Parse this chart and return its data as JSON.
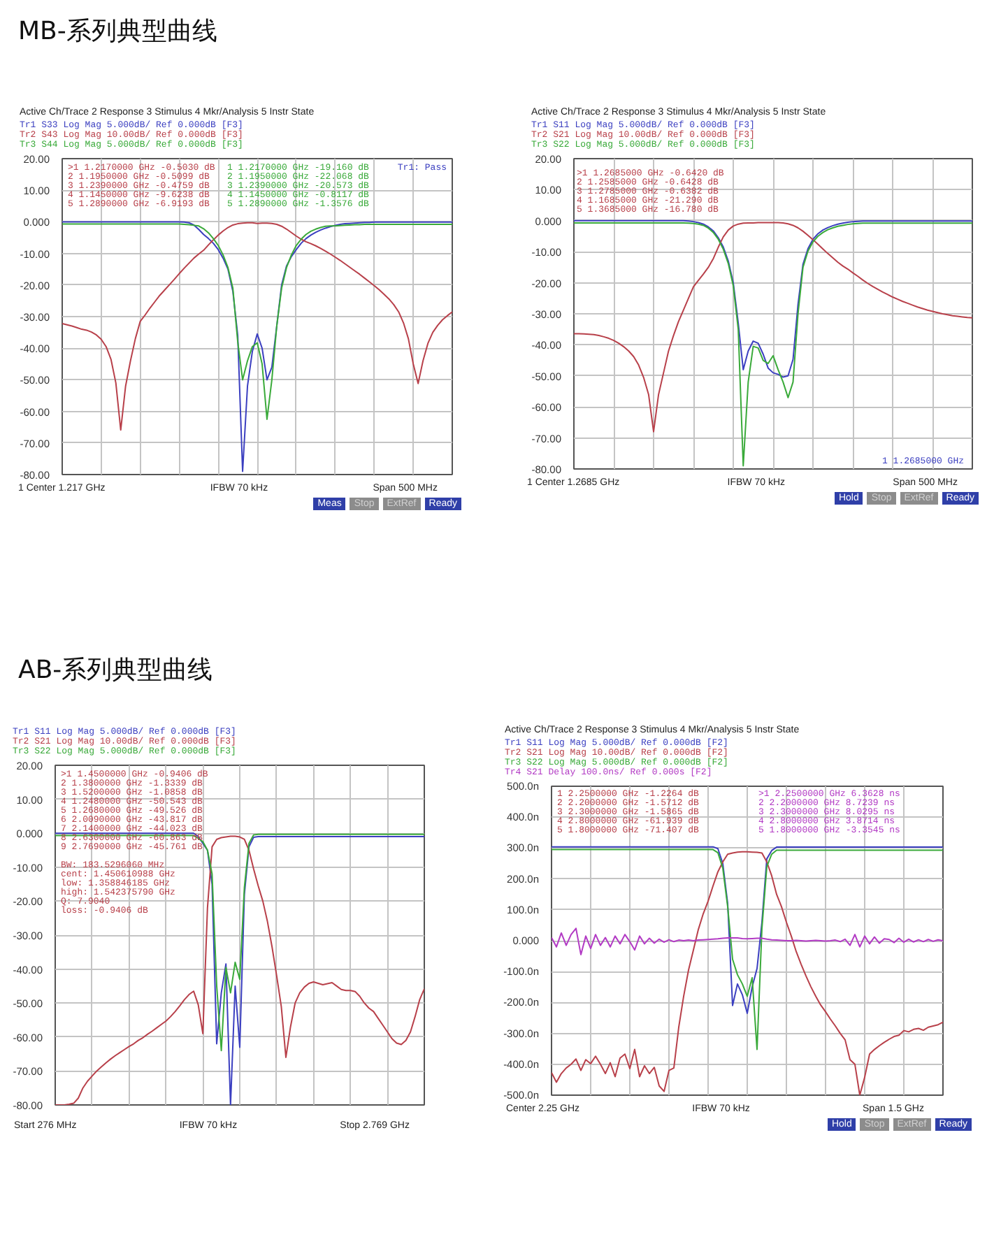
{
  "chart_data": [
    {
      "type": "line",
      "title": "MB-系列典型曲线",
      "subtitle": "Active Ch/Trace 2 Response 3 Stimulus 4 Mkr/Analysis 5 Instr State",
      "categories": [
        null,
        null,
        null,
        null,
        null,
        null,
        null,
        null,
        null,
        null,
        null,
        null,
        null,
        null,
        null,
        null,
        null,
        null,
        null,
        null,
        null,
        null,
        null,
        null,
        null,
        null,
        null,
        null,
        null,
        null,
        null,
        null,
        null,
        null,
        null,
        null,
        null,
        null,
        null,
        null,
        null,
        null,
        null,
        null,
        null,
        null,
        null,
        null,
        null,
        null,
        null,
        null,
        null,
        null,
        null,
        null,
        null,
        null,
        null,
        null,
        null,
        null,
        null,
        null,
        null,
        null,
        null,
        null,
        null,
        null,
        null,
        null,
        null,
        null,
        null,
        null,
        null,
        null,
        null,
        null,
        null
      ],
      "series": [
        {
          "name": "Tr1 S33 Log Mag 5.000dB/ Ref 0.000dB [F3]",
          "color": "#3b3fc0",
          "values": [
            0,
            0,
            0,
            0,
            0,
            0,
            0,
            0,
            0,
            0,
            0,
            0,
            0,
            0,
            0,
            0,
            0,
            0,
            0,
            0,
            0,
            0,
            0,
            0,
            0,
            -0.1,
            -0.3,
            -1.0,
            -2.4,
            -4.0,
            -5.3,
            -6.8,
            -8.8,
            -11.5,
            -15,
            -22,
            -36,
            -79,
            -52,
            -41,
            -35.5,
            -40,
            -50,
            -46,
            -33,
            -20,
            -14,
            -11,
            -8.8,
            -6.8,
            -5.3,
            -4.2,
            -3.3,
            -2.6,
            -2.0,
            -1.5,
            -1.1,
            -0.8,
            -0.6,
            -0.5,
            -0.4,
            -0.3,
            -0.2,
            -0.2,
            -0.1,
            -0.1,
            -0.1,
            -0.1,
            -0.1,
            -0.1,
            -0.1,
            -0.1,
            -0.1,
            -0.1,
            -0.1,
            -0.1,
            -0.1,
            -0.1,
            -0.1,
            -0.1,
            -0.1
          ]
        },
        {
          "name": "Tr2 S43 Log Mag 10.00dB/ Ref 0.000dB [F3]",
          "color": "#b8404a",
          "values": [
            -32.2,
            -32.6,
            -33.0,
            -33.5,
            -34.0,
            -34.3,
            -34.9,
            -35.8,
            -37.2,
            -39.5,
            -43.5,
            -51,
            -65.9,
            -52,
            -44,
            -37,
            -31.5,
            -29.5,
            -27.3,
            -25.3,
            -23.3,
            -21.6,
            -19.9,
            -18.2,
            -16.4,
            -14.7,
            -13.1,
            -11.5,
            -10.2,
            -9.0,
            -7.3,
            -5.7,
            -4.2,
            -2.9,
            -1.8,
            -1.0,
            -0.6,
            -0.4,
            -0.3,
            -0.3,
            -0.5,
            -0.4,
            -0.4,
            -0.5,
            -0.8,
            -1.4,
            -2.3,
            -3.4,
            -4.5,
            -5.5,
            -6.3,
            -6.9,
            -7.6,
            -8.4,
            -9.3,
            -10.2,
            -11.2,
            -12.2,
            -13.3,
            -14.4,
            -15.5,
            -16.6,
            -17.8,
            -19.0,
            -20.2,
            -21.5,
            -22.9,
            -24.4,
            -26.2,
            -28.5,
            -32,
            -37,
            -45,
            -51.2,
            -44,
            -38.5,
            -35,
            -32.8,
            -31.0,
            -29.7,
            -28.5
          ]
        },
        {
          "name": "Tr3 S44 Log Mag 5.000dB/ Ref 0.000dB [F3]",
          "color": "#3aaa3a",
          "values": [
            -0.7,
            -0.7,
            -0.7,
            -0.7,
            -0.7,
            -0.7,
            -0.7,
            -0.7,
            -0.7,
            -0.7,
            -0.7,
            -0.7,
            -0.7,
            -0.7,
            -0.7,
            -0.7,
            -0.7,
            -0.7,
            -0.7,
            -0.7,
            -0.7,
            -0.7,
            -0.7,
            -0.7,
            -0.7,
            -0.8,
            -0.9,
            -1.1,
            -1.3,
            -2.2,
            -3.5,
            -5.3,
            -7.5,
            -10.5,
            -14.5,
            -21,
            -38,
            -50,
            -44,
            -39.5,
            -38.3,
            -45,
            -62.5,
            -50,
            -33,
            -21,
            -14.5,
            -10.5,
            -7.5,
            -5.5,
            -4.0,
            -3.0,
            -2.3,
            -1.8,
            -1.4,
            -1.3,
            -1.3,
            -1.2,
            -1.1,
            -1.0,
            -0.9,
            -0.9,
            -0.8,
            -0.8,
            -0.8,
            -0.8,
            -0.8,
            -0.8,
            -0.8,
            -0.8,
            -0.8,
            -0.8,
            -0.8,
            -0.8,
            -0.8,
            -0.8,
            -0.8,
            -0.8,
            -0.8,
            -0.8,
            -0.8
          ]
        }
      ],
      "ylim": [
        -80,
        20
      ],
      "yticks": [
        {
          "value": 20,
          "label": "20.00"
        },
        {
          "value": 10,
          "label": "10.00"
        },
        {
          "value": 0,
          "label": "0.000"
        },
        {
          "value": -10,
          "label": "-10.00"
        },
        {
          "value": -20,
          "label": "-20.00"
        },
        {
          "value": -30,
          "label": "-30.00"
        },
        {
          "value": -40,
          "label": "-40.00"
        },
        {
          "value": -50,
          "label": "-50.00"
        },
        {
          "value": -60,
          "label": "-60.00"
        },
        {
          "value": -70,
          "label": "-70.00"
        },
        {
          "value": -80,
          "label": "-80.00"
        }
      ],
      "grid": true,
      "tick_labels": "y",
      "annotations": [
        ">1 1.2170000 GHz -0.5030 dB\n2 1.1950000 GHz -0.5099 dB\n3 1.2390000 GHz -0.4759 dB\n4 1.1450000 GHz -9.6238 dB\n5 1.2890000 GHz -6.9193 dB",
        "1 1.2170000 GHz -19.160 dB\n2 1.1950000 GHz -22.068 dB\n3 1.2390000 GHz -20.573 dB\n4 1.1450000 GHz -0.8117 dB\n5 1.2890000 GHz -1.3576 dB",
        "Tr1: Pass",
        "1 Center 1.217 GHz",
        "IFBW 70 kHz",
        "Span 500 MHz",
        "Meas",
        "Stop",
        "ExtRef",
        "Ready"
      ]
    },
    {
      "type": "line",
      "subtitle": "Active Ch/Trace 2 Response 3 Stimulus 4 Mkr/Analysis 5 Instr State",
      "categories": [
        null,
        null,
        null,
        null,
        null,
        null,
        null,
        null,
        null,
        null,
        null,
        null,
        null,
        null,
        null,
        null,
        null,
        null,
        null,
        null,
        null,
        null,
        null,
        null,
        null,
        null,
        null,
        null,
        null,
        null,
        null,
        null,
        null,
        null,
        null,
        null,
        null,
        null,
        null,
        null,
        null,
        null,
        null,
        null,
        null,
        null,
        null,
        null,
        null,
        null,
        null,
        null,
        null,
        null,
        null,
        null,
        null,
        null,
        null,
        null,
        null,
        null,
        null,
        null,
        null,
        null,
        null,
        null,
        null,
        null,
        null,
        null,
        null,
        null,
        null,
        null,
        null,
        null,
        null,
        null,
        null
      ],
      "series": [
        {
          "name": "Tr1 S11 Log Mag 5.000dB/ Ref 0.000dB [F3]",
          "color": "#3b3fc0",
          "values": [
            0,
            0,
            0,
            0,
            0,
            0,
            0,
            0,
            0,
            0,
            0,
            0,
            0,
            0,
            0,
            0,
            0,
            0,
            0,
            0,
            0,
            0,
            0,
            -0.1,
            -0.3,
            -0.6,
            -1.1,
            -2.0,
            -3.3,
            -5.5,
            -8.5,
            -13,
            -20,
            -33,
            -48,
            -42,
            -38.8,
            -39.5,
            -43,
            -47.5,
            -49,
            -49.5,
            -50.4,
            -50,
            -44.7,
            -27,
            -14,
            -9,
            -6,
            -4.2,
            -3.0,
            -2.2,
            -1.6,
            -1.1,
            -0.8,
            -0.5,
            -0.3,
            -0.2,
            -0.1,
            -0.1,
            -0.1,
            -0.1,
            -0.1,
            -0.1,
            -0.1,
            -0.1,
            -0.1,
            -0.1,
            -0.1,
            -0.1,
            -0.1,
            -0.1,
            -0.1,
            -0.1,
            -0.1,
            -0.1,
            -0.1,
            -0.1,
            -0.1,
            -0.1,
            -0.1
          ]
        },
        {
          "name": "Tr2 S21 Log Mag 10.00dB/ Ref 0.000dB [F3]",
          "color": "#b8404a",
          "values": [
            -36.4,
            -36.4,
            -36.5,
            -36.6,
            -36.7,
            -37.0,
            -37.4,
            -37.9,
            -38.6,
            -39.5,
            -40.6,
            -42.0,
            -43.8,
            -46.5,
            -50.5,
            -56,
            -68,
            -56,
            -49,
            -42,
            -37,
            -32.5,
            -28.8,
            -25,
            -21.3,
            -19.2,
            -17.2,
            -15,
            -12.2,
            -8.5,
            -5.2,
            -3.0,
            -1.7,
            -1.1,
            -0.8,
            -0.7,
            -0.7,
            -0.6,
            -0.6,
            -0.6,
            -0.6,
            -0.6,
            -0.7,
            -1.0,
            -1.5,
            -2.3,
            -3.4,
            -4.7,
            -6.1,
            -7.6,
            -9.1,
            -10.6,
            -12.0,
            -13.4,
            -14.6,
            -15.6,
            -16.8,
            -17.9,
            -19.1,
            -20.2,
            -21.2,
            -22.1,
            -23.0,
            -23.8,
            -24.6,
            -25.3,
            -26.0,
            -26.6,
            -27.2,
            -27.8,
            -28.3,
            -28.8,
            -29.2,
            -29.6,
            -30.0,
            -30.3,
            -30.6,
            -30.8,
            -31.0,
            -31.2,
            -31.3
          ]
        },
        {
          "name": "Tr3 S22 Log Mag 5.000dB/ Ref 0.000dB [F3]",
          "color": "#3aaa3a",
          "values": [
            -0.7,
            -0.7,
            -0.7,
            -0.7,
            -0.7,
            -0.7,
            -0.7,
            -0.7,
            -0.7,
            -0.7,
            -0.7,
            -0.7,
            -0.7,
            -0.7,
            -0.7,
            -0.7,
            -0.7,
            -0.7,
            -0.7,
            -0.7,
            -0.7,
            -0.7,
            -0.7,
            -0.8,
            -0.9,
            -1.1,
            -1.5,
            -2.4,
            -3.8,
            -6.0,
            -9.2,
            -13.8,
            -21,
            -35,
            -79,
            -52,
            -40.5,
            -41,
            -45,
            -46,
            -43.5,
            -48,
            -52,
            -57,
            -52,
            -30,
            -15,
            -9.8,
            -6.8,
            -5.0,
            -3.8,
            -2.9,
            -2.3,
            -1.8,
            -1.5,
            -1.2,
            -1.0,
            -0.9,
            -0.8,
            -0.8,
            -0.8,
            -0.8,
            -0.8,
            -0.8,
            -0.8,
            -0.8,
            -0.8,
            -0.8,
            -0.8,
            -0.8,
            -0.8,
            -0.8,
            -0.8,
            -0.8,
            -0.8,
            -0.8,
            -0.8,
            -0.8,
            -0.8,
            -0.8,
            -0.8
          ]
        }
      ],
      "ylim": [
        -80,
        20
      ],
      "yticks": [
        {
          "value": 20,
          "label": "20.00"
        },
        {
          "value": 10,
          "label": "10.00"
        },
        {
          "value": 0,
          "label": "0.000"
        },
        {
          "value": -10,
          "label": "-10.00"
        },
        {
          "value": -20,
          "label": "-20.00"
        },
        {
          "value": -30,
          "label": "-30.00"
        },
        {
          "value": -40,
          "label": "-40.00"
        },
        {
          "value": -50,
          "label": "-50.00"
        },
        {
          "value": -60,
          "label": "-60.00"
        },
        {
          "value": -70,
          "label": "-70.00"
        },
        {
          "value": -80,
          "label": "-80.00"
        }
      ],
      "grid": true,
      "tick_labels": "y",
      "annotations": [
        ">1 1.2685000 GHz -0.6420 dB\n2 1.2585000 GHz -0.6428 dB\n3 1.2785000 GHz -0.6382 dB\n4 1.1685000 GHz -21.290 dB\n5 1.3685000 GHz -16.780 dB",
        "1 1.2685000 GHz",
        "1 Center 1.2685 GHz",
        "IFBW 70 kHz",
        "Span 500 MHz",
        "Hold",
        "Stop",
        "ExtRef",
        "Ready"
      ]
    },
    {
      "type": "line",
      "title": "AB-系列典型曲线",
      "categories": [
        null,
        null,
        null,
        null,
        null,
        null,
        null,
        null,
        null,
        null,
        null,
        null,
        null,
        null,
        null,
        null,
        null,
        null,
        null,
        null,
        null,
        null,
        null,
        null,
        null,
        null,
        null,
        null,
        null,
        null,
        null,
        null,
        null,
        null,
        null,
        null,
        null,
        null,
        null,
        null,
        null,
        null,
        null,
        null,
        null,
        null,
        null,
        null,
        null,
        null,
        null,
        null,
        null,
        null,
        null,
        null,
        null,
        null,
        null,
        null,
        null,
        null,
        null,
        null,
        null,
        null,
        null,
        null,
        null,
        null,
        null,
        null,
        null,
        null,
        null,
        null,
        null,
        null,
        null,
        null,
        null
      ],
      "series": [
        {
          "name": "Tr1 S11 Log Mag 5.000dB/ Ref 0.000dB [F3]",
          "color": "#3b3fc0",
          "values": [
            0,
            0,
            0,
            0,
            0,
            0,
            0,
            0,
            0,
            0,
            0,
            0,
            0,
            0,
            0,
            0,
            0,
            0,
            0,
            0,
            0,
            0,
            0,
            0,
            0,
            0,
            0,
            0,
            0,
            0,
            0,
            -1,
            -3,
            -5,
            -15,
            -62,
            -47,
            -38.5,
            -80,
            -45,
            -63,
            -18,
            -4,
            -1.2,
            -1.0,
            -1.0,
            -1.0,
            -1.0,
            -1.0,
            -1.0,
            -1.0,
            -1.0,
            -1.0,
            -1.0,
            -1.0,
            -1.0,
            -1.0,
            -1.0,
            -1.0,
            -1.0,
            -1.0,
            -1.0,
            -1.0,
            -1.0,
            -1.0,
            -1.0,
            -1.0,
            -1.0,
            -1.0,
            -1.0,
            -1.0,
            -1.0,
            -1.0,
            -1.0,
            -1.0,
            -1.0,
            -1.0,
            -1.0,
            -1.0,
            -1.0,
            -1.0
          ]
        },
        {
          "name": "Tr2 S21 Log Mag 10.00dB/ Ref 0.000dB [F3]",
          "color": "#b8404a",
          "values": [
            -80,
            -80,
            -80,
            -79.8,
            -79.5,
            -78,
            -75,
            -73,
            -71.5,
            -70,
            -68.8,
            -67.6,
            -66.5,
            -65.5,
            -64.6,
            -63.7,
            -62.8,
            -62,
            -61,
            -60.2,
            -59.2,
            -58.3,
            -57.3,
            -56.3,
            -55.3,
            -54,
            -52.5,
            -50.8,
            -49,
            -47.5,
            -46.5,
            -50.5,
            -59,
            -22,
            -4,
            -1.8,
            -1.3,
            -1.1,
            -0.9,
            -0.9,
            -1.1,
            -1.8,
            -5,
            -10.5,
            -15.5,
            -20,
            -26,
            -33.5,
            -42,
            -51,
            -66,
            -57,
            -50,
            -47,
            -45.3,
            -44.2,
            -43.8,
            -44.2,
            -44.6,
            -44.3,
            -44.0,
            -45,
            -46,
            -46.3,
            -46.3,
            -46.6,
            -48,
            -50,
            -51.5,
            -52.5,
            -54.5,
            -56.5,
            -58.5,
            -60.5,
            -61.8,
            -62.2,
            -61,
            -58.5,
            -54,
            -49,
            -45.8
          ]
        },
        {
          "name": "Tr3 S22 Log Mag 5.000dB/ Ref 0.000dB [F3]",
          "color": "#3aaa3a",
          "values": [
            -0.7,
            -0.7,
            -0.7,
            -0.7,
            -0.7,
            -0.7,
            -0.7,
            -0.7,
            -0.7,
            -0.7,
            -0.7,
            -0.7,
            -0.7,
            -0.7,
            -0.7,
            -0.7,
            -0.7,
            -0.7,
            -0.7,
            -0.7,
            -0.7,
            -0.7,
            -0.7,
            -0.7,
            -0.7,
            -0.7,
            -0.7,
            -0.7,
            -0.7,
            -0.7,
            -0.7,
            -1.5,
            -2.5,
            -5,
            -12,
            -45,
            -64,
            -39.5,
            -47,
            -38,
            -43,
            -16,
            -3,
            -0.5,
            -0.3,
            -0.3,
            -0.3,
            -0.3,
            -0.3,
            -0.3,
            -0.3,
            -0.3,
            -0.3,
            -0.3,
            -0.3,
            -0.3,
            -0.3,
            -0.3,
            -0.3,
            -0.3,
            -0.3,
            -0.3,
            -0.3,
            -0.3,
            -0.3,
            -0.3,
            -0.3,
            -0.3,
            -0.3,
            -0.3,
            -0.3,
            -0.3,
            -0.3,
            -0.3,
            -0.3,
            -0.3,
            -0.3,
            -0.3,
            -0.3,
            -0.3,
            -0.3
          ]
        }
      ],
      "ylim": [
        -80,
        20
      ],
      "yticks": [
        {
          "value": 20,
          "label": "20.00"
        },
        {
          "value": 10,
          "label": "10.00"
        },
        {
          "value": 0,
          "label": "0.000"
        },
        {
          "value": -10,
          "label": "-10.00"
        },
        {
          "value": -20,
          "label": "-20.00"
        },
        {
          "value": -30,
          "label": "-30.00"
        },
        {
          "value": -40,
          "label": "-40.00"
        },
        {
          "value": -50,
          "label": "-50.00"
        },
        {
          "value": -60,
          "label": "-60.00"
        },
        {
          "value": -70,
          "label": "-70.00"
        },
        {
          "value": -80,
          "label": "-80.00"
        }
      ],
      "grid": true,
      "tick_labels": "y",
      "annotations": [
        ">1 1.4500000 GHz -0.9406 dB\n2 1.3800000 GHz -1.3339 dB\n3 1.5200000 GHz -1.0858 dB\n4 1.2480000 GHz -50.543 dB\n5 1.2680000 GHz -49.526 dB\n6 2.0090000 GHz -43.817 dB\n7 2.1400000 GHz -44.023 dB\n8 2.6300000 GHz -60.863 dB\n9 2.7690000 GHz -45.761 dB",
        "BW: 183.5296060 MHz\ncent: 1.450610988 GHz\nlow: 1.358846185 GHz\nhigh: 1.542375790 GHz\nQ: 7.9040\nloss: -0.9406 dB",
        "Start 276 MHz",
        "IFBW 70 kHz",
        "Stop 2.769 GHz"
      ]
    },
    {
      "type": "line",
      "subtitle": "Active Ch/Trace 2 Response 3 Stimulus 4 Mkr/Analysis 5 Instr State",
      "categories": [
        null,
        null,
        null,
        null,
        null,
        null,
        null,
        null,
        null,
        null,
        null,
        null,
        null,
        null,
        null,
        null,
        null,
        null,
        null,
        null,
        null,
        null,
        null,
        null,
        null,
        null,
        null,
        null,
        null,
        null,
        null,
        null,
        null,
        null,
        null,
        null,
        null,
        null,
        null,
        null,
        null,
        null,
        null,
        null,
        null,
        null,
        null,
        null,
        null,
        null,
        null,
        null,
        null,
        null,
        null,
        null,
        null,
        null,
        null,
        null,
        null,
        null,
        null,
        null,
        null,
        null,
        null,
        null,
        null,
        null,
        null,
        null,
        null,
        null,
        null,
        null,
        null,
        null,
        null,
        null,
        null
      ],
      "series": [
        {
          "name": "Tr1 S11 Log Mag 5.000dB/ Ref 0.000dB [F2]",
          "color": "#3b3fc0",
          "values": [
            304,
            304,
            304,
            304,
            304,
            304,
            304,
            304,
            304,
            304,
            304,
            304,
            304,
            304,
            304,
            304,
            304,
            304,
            304,
            304,
            304,
            304,
            304,
            304,
            304,
            304,
            304,
            304,
            304,
            304,
            304,
            304,
            304,
            304,
            298,
            250,
            120,
            -210,
            -140,
            -175,
            -235,
            -150,
            -90,
            60,
            265,
            292,
            303,
            303,
            303,
            303,
            303,
            303,
            303,
            303,
            303,
            303,
            303,
            303,
            303,
            303,
            303,
            303,
            303,
            303,
            303,
            303,
            303,
            303,
            303,
            303,
            303,
            303,
            303,
            303,
            303,
            303,
            303,
            303,
            303,
            303,
            303
          ]
        },
        {
          "name": "Tr2 S21 Log Mag 10.00dB/ Ref 0.000dB [F2]",
          "color": "#b8404a",
          "values": [
            -427,
            -458,
            -430,
            -412,
            -400,
            -383,
            -420,
            -385,
            -398,
            -374,
            -400,
            -430,
            -395,
            -440,
            -380,
            -367,
            -414,
            -352,
            -440,
            -405,
            -430,
            -410,
            -470,
            -488,
            -420,
            -412,
            -280,
            -180,
            -95,
            -30,
            36,
            87,
            128,
            177,
            223,
            255,
            280,
            284,
            287,
            288,
            288,
            287,
            286,
            284,
            255,
            210,
            150,
            110,
            60,
            15,
            -35,
            -76,
            -114,
            -149,
            -180,
            -208,
            -230,
            -254,
            -276,
            -300,
            -321,
            -385,
            -400,
            -500,
            -442,
            -367,
            -352,
            -340,
            -329,
            -319,
            -310,
            -306,
            -291,
            -295,
            -287,
            -284,
            -290,
            -280,
            -276,
            -272,
            -264
          ]
        },
        {
          "name": "Tr3 S22 Log Mag 5.000dB/ Ref 0.000dB [F2]",
          "color": "#3aaa3a",
          "values": [
            295,
            295,
            295,
            295,
            295,
            295,
            295,
            295,
            295,
            295,
            295,
            295,
            295,
            295,
            295,
            295,
            295,
            295,
            295,
            295,
            295,
            295,
            295,
            295,
            295,
            295,
            295,
            295,
            295,
            295,
            295,
            295,
            295,
            295,
            285,
            235,
            110,
            -60,
            -110,
            -140,
            -180,
            -120,
            -352,
            40,
            240,
            280,
            293,
            293,
            293,
            293,
            293,
            293,
            293,
            293,
            293,
            293,
            293,
            293,
            293,
            293,
            293,
            293,
            293,
            293,
            293,
            293,
            293,
            293,
            293,
            293,
            293,
            293,
            293,
            293,
            293,
            293,
            293,
            293,
            293,
            293,
            293
          ]
        },
        {
          "name": "Tr4 S21 Delay 100.0ns/ Ref 0.000s [F2]",
          "color": "#b23ac4",
          "values": [
            10,
            -20,
            25,
            -15,
            20,
            40,
            -45,
            15,
            -25,
            20,
            -15,
            10,
            -20,
            15,
            -10,
            20,
            -3,
            -30,
            15,
            -10,
            8,
            -8,
            5,
            -5,
            3,
            -3,
            2,
            0,
            2,
            0,
            2,
            3,
            4,
            5,
            6,
            8,
            9,
            9,
            9,
            7,
            6,
            7,
            8,
            8,
            5,
            3,
            2,
            1,
            0,
            0,
            1,
            0,
            -1,
            0,
            1,
            0,
            -1,
            0,
            2,
            -3,
            5,
            -15,
            20,
            -20,
            15,
            -10,
            12,
            -8,
            6,
            4,
            -6,
            8,
            -5,
            5,
            -4,
            3,
            -3,
            4,
            -2,
            3,
            0
          ]
        }
      ],
      "ylim": [
        -500,
        500
      ],
      "yticks": [
        {
          "value": 500,
          "label": "500.0n"
        },
        {
          "value": 400,
          "label": "400.0n"
        },
        {
          "value": 300,
          "label": "300.0n"
        },
        {
          "value": 200,
          "label": "200.0n"
        },
        {
          "value": 100,
          "label": "100.0n"
        },
        {
          "value": 0,
          "label": "0.000"
        },
        {
          "value": -100,
          "label": "-100.0n"
        },
        {
          "value": -200,
          "label": "-200.0n"
        },
        {
          "value": -300,
          "label": "-300.0n"
        },
        {
          "value": -400,
          "label": "-400.0n"
        },
        {
          "value": -500,
          "label": "-500.0n"
        }
      ],
      "grid": true,
      "tick_labels": "y",
      "annotations": [
        "1 2.2500000 GHz -1.2264 dB\n2 2.2000000 GHz -1.5712 dB\n3 2.3000000 GHz -1.5865 dB\n4 2.8000000 GHz -61.939 dB\n5 1.8000000 GHz -71.407 dB",
        ">1 2.2500000 GHz 6.3628 ns\n2 2.2000000 GHz 8.7239 ns\n3 2.3000000 GHz 8.0295 ns\n4 2.8000000 GHz 3.8714 ns\n5 1.8000000 GHz -3.3545 ns",
        "Center 2.25 GHz",
        "IFBW 70 kHz",
        "Span 1.5 GHz",
        "Hold",
        "Stop",
        "ExtRef",
        "Ready"
      ]
    }
  ]
}
